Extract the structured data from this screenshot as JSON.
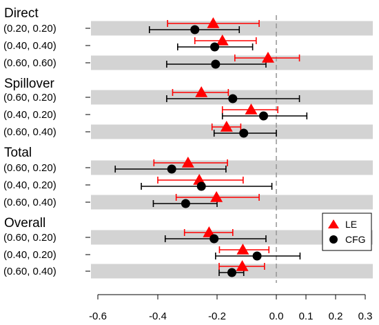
{
  "chart_data": {
    "type": "scatter",
    "title": "",
    "xlabel": "",
    "ylabel": "",
    "xlim": [
      -0.62,
      0.31
    ],
    "xticks": [
      -0.6,
      -0.4,
      -0.2,
      0.0,
      0.1,
      0.2,
      0.3
    ],
    "xtick_labels": [
      "-0.6",
      "-0.4",
      "-0.2",
      "0.0",
      "0.1",
      "0.2",
      "0.3"
    ],
    "reference_line": 0.0,
    "legend": {
      "position": "right",
      "entries": [
        {
          "name": "LE",
          "color": "#ff0000",
          "marker": "triangle"
        },
        {
          "name": "CFG",
          "color": "#000000",
          "marker": "circle"
        }
      ]
    },
    "colors": {
      "LE": "#ff0000",
      "CFG": "#000000",
      "band": "#d3d3d3",
      "refline": "#999999"
    },
    "groups": [
      {
        "name": "Direct",
        "rows": [
          {
            "label": "(0.20, 0.20)",
            "shaded": true,
            "LE": {
              "est": -0.213,
              "lo": -0.367,
              "hi": -0.058
            },
            "CFG": {
              "est": -0.275,
              "lo": -0.428,
              "hi": -0.125
            }
          },
          {
            "label": "(0.40, 0.40)",
            "shaded": false,
            "LE": {
              "est": -0.182,
              "lo": -0.275,
              "hi": -0.068
            },
            "CFG": {
              "est": -0.208,
              "lo": -0.333,
              "hi": -0.08
            }
          },
          {
            "label": "(0.60, 0.60)",
            "shaded": true,
            "LE": {
              "est": -0.028,
              "lo": -0.14,
              "hi": 0.078
            },
            "CFG": {
              "est": -0.205,
              "lo": -0.37,
              "hi": -0.035
            }
          }
        ]
      },
      {
        "name": "Spillover",
        "rows": [
          {
            "label": "(0.60, 0.20)",
            "shaded": true,
            "LE": {
              "est": -0.253,
              "lo": -0.35,
              "hi": -0.162
            },
            "CFG": {
              "est": -0.147,
              "lo": -0.37,
              "hi": 0.078
            }
          },
          {
            "label": "(0.40, 0.20)",
            "shaded": false,
            "LE": {
              "est": -0.085,
              "lo": -0.182,
              "hi": 0.005
            },
            "CFG": {
              "est": -0.043,
              "lo": -0.182,
              "hi": 0.103
            }
          },
          {
            "label": "(0.60, 0.40)",
            "shaded": true,
            "LE": {
              "est": -0.168,
              "lo": -0.217,
              "hi": -0.12
            },
            "CFG": {
              "est": -0.11,
              "lo": -0.21,
              "hi": 0.0
            }
          }
        ]
      },
      {
        "name": "Total",
        "rows": [
          {
            "label": "(0.60, 0.20)",
            "shaded": true,
            "LE": {
              "est": -0.298,
              "lo": -0.413,
              "hi": -0.165
            },
            "CFG": {
              "est": -0.353,
              "lo": -0.542,
              "hi": -0.17
            }
          },
          {
            "label": "(0.40, 0.20)",
            "shaded": false,
            "LE": {
              "est": -0.26,
              "lo": -0.4,
              "hi": -0.112
            },
            "CFG": {
              "est": -0.253,
              "lo": -0.455,
              "hi": -0.015
            }
          },
          {
            "label": "(0.60, 0.40)",
            "shaded": true,
            "LE": {
              "est": -0.202,
              "lo": -0.338,
              "hi": -0.058
            },
            "CFG": {
              "est": -0.306,
              "lo": -0.415,
              "hi": -0.2
            }
          }
        ]
      },
      {
        "name": "Overall",
        "rows": [
          {
            "label": "(0.60, 0.20)",
            "shaded": true,
            "LE": {
              "est": -0.227,
              "lo": -0.31,
              "hi": -0.147
            },
            "CFG": {
              "est": -0.21,
              "lo": -0.375,
              "hi": -0.035
            }
          },
          {
            "label": "(0.40, 0.20)",
            "shaded": false,
            "LE": {
              "est": -0.113,
              "lo": -0.192,
              "hi": -0.025
            },
            "CFG": {
              "est": -0.065,
              "lo": -0.205,
              "hi": 0.08
            }
          },
          {
            "label": "(0.60, 0.40)",
            "shaded": true,
            "LE": {
              "est": -0.115,
              "lo": -0.193,
              "hi": -0.04
            },
            "CFG": {
              "est": -0.15,
              "lo": -0.193,
              "hi": -0.11
            }
          }
        ]
      }
    ]
  }
}
